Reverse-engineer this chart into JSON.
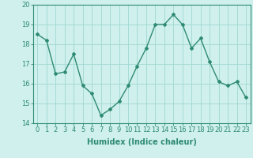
{
  "x": [
    0,
    1,
    2,
    3,
    4,
    5,
    6,
    7,
    8,
    9,
    10,
    11,
    12,
    13,
    14,
    15,
    16,
    17,
    18,
    19,
    20,
    21,
    22,
    23
  ],
  "y": [
    18.5,
    18.2,
    16.5,
    16.6,
    17.5,
    15.9,
    15.5,
    14.4,
    14.7,
    15.1,
    15.9,
    16.9,
    17.8,
    19.0,
    19.0,
    19.5,
    19.0,
    17.8,
    18.3,
    17.1,
    16.1,
    15.9,
    16.1,
    15.3
  ],
  "line_color": "#2e8b72",
  "marker": "D",
  "marker_size": 2.0,
  "bg_color": "#cff0ed",
  "grid_color": "#a0d8d2",
  "axis_color": "#2e8b72",
  "xlabel": "Humidex (Indice chaleur)",
  "xlabel_fontsize": 7,
  "tick_fontsize": 6,
  "ylim": [
    14,
    20
  ],
  "xlim": [
    -0.5,
    23.5
  ],
  "yticks": [
    14,
    15,
    16,
    17,
    18,
    19,
    20
  ],
  "xticks": [
    0,
    1,
    2,
    3,
    4,
    5,
    6,
    7,
    8,
    9,
    10,
    11,
    12,
    13,
    14,
    15,
    16,
    17,
    18,
    19,
    20,
    21,
    22,
    23
  ],
  "line_width": 1.0
}
